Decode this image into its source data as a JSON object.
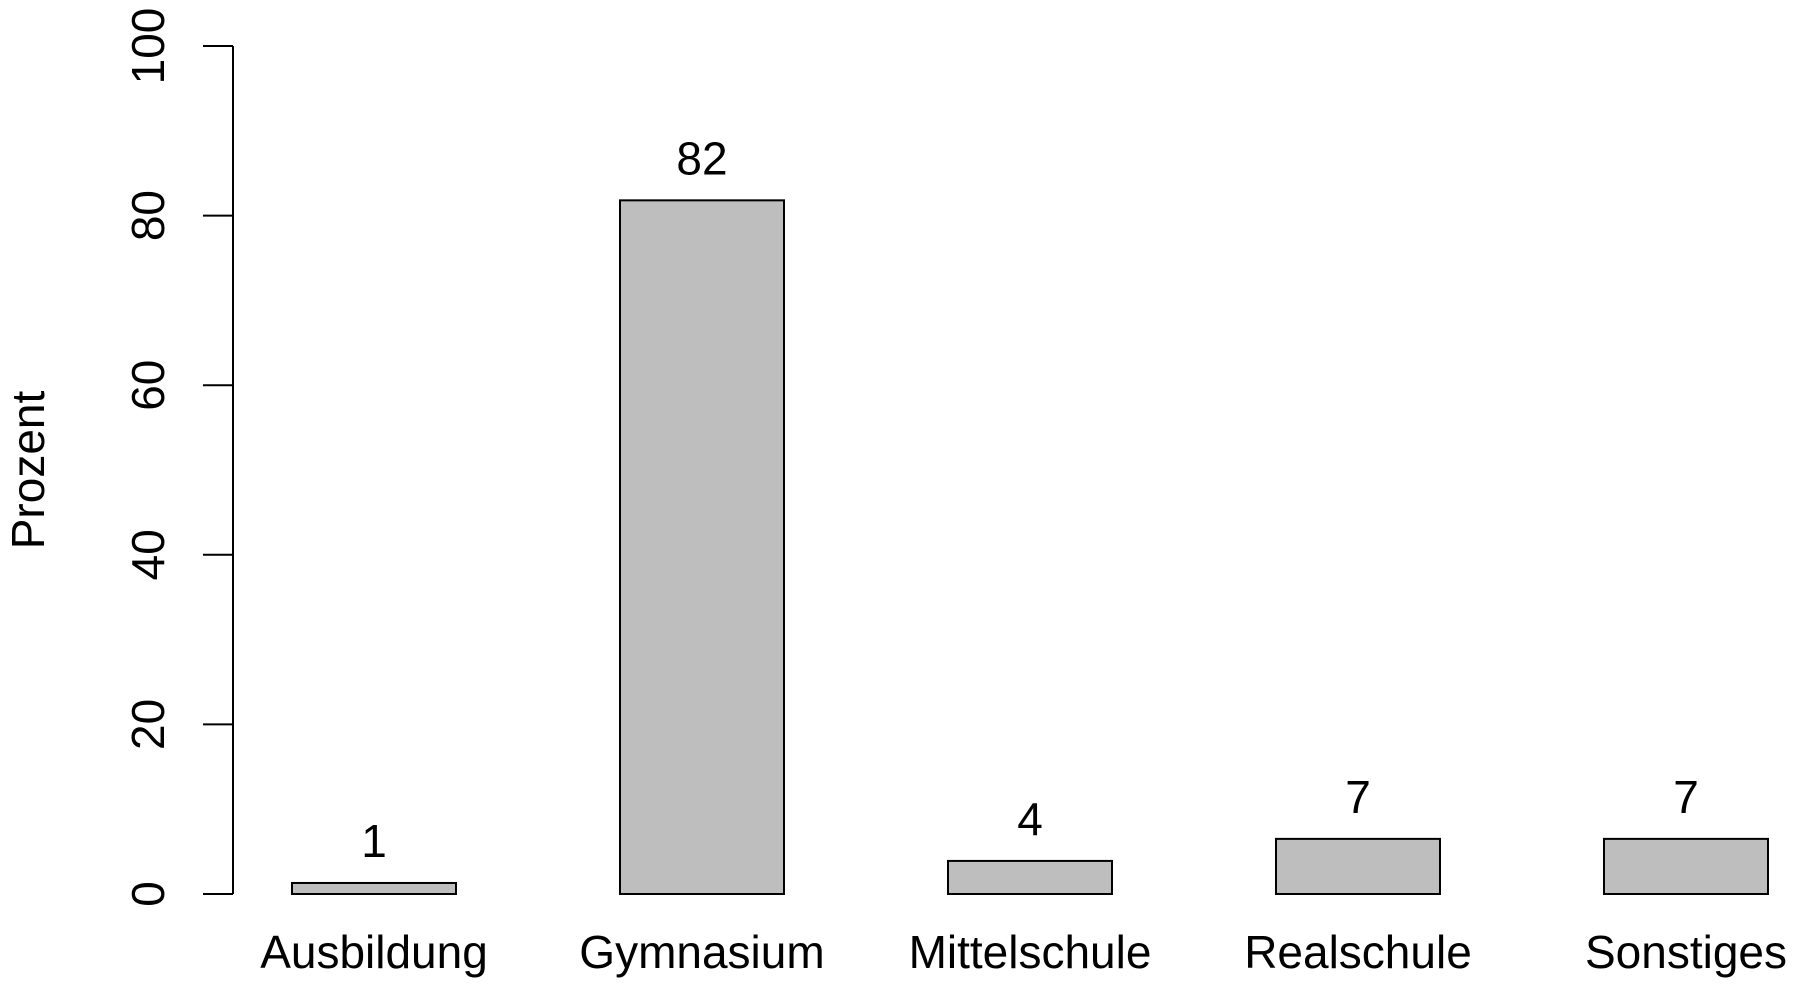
{
  "chart_data": {
    "type": "bar",
    "categories": [
      "Ausbildung",
      "Gymnasium",
      "Mittelschule",
      "Realschule",
      "Sonstiges"
    ],
    "values": [
      1.3,
      81.8,
      3.9,
      6.5,
      6.5
    ],
    "value_labels": [
      "1",
      "82",
      "4",
      "7",
      "7"
    ],
    "ylabel": "Prozent",
    "xlabel": "",
    "ylim": [
      0,
      100
    ],
    "yticks": [
      0,
      20,
      40,
      60,
      80,
      100
    ],
    "grid": false,
    "bar_color": "#bebebe",
    "outline_color": "#000000"
  }
}
